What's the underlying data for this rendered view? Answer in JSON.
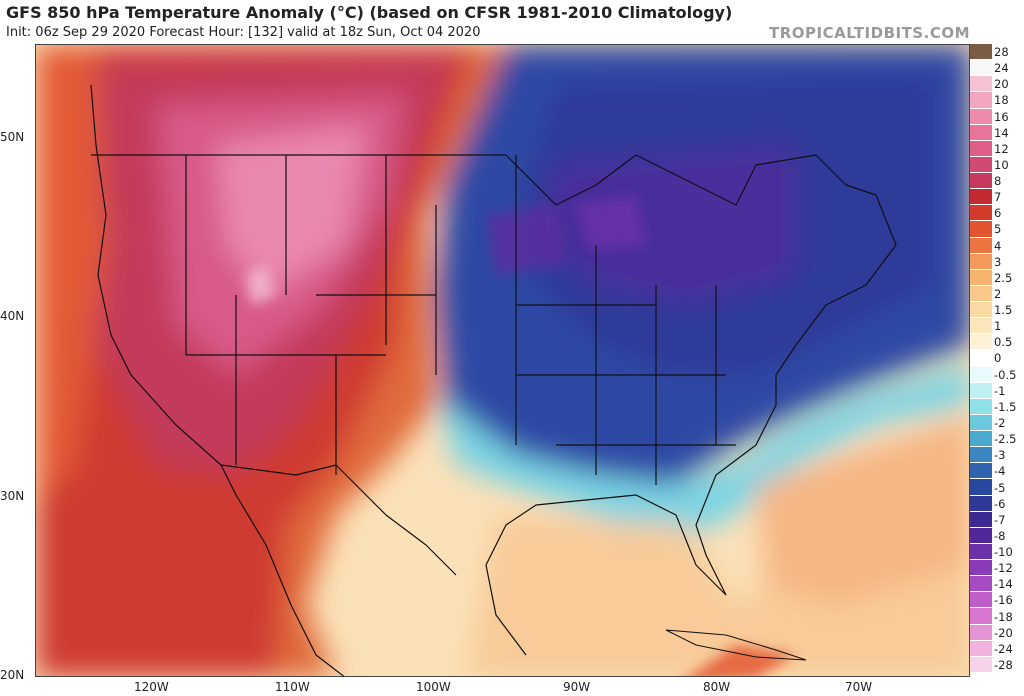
{
  "header": {
    "title": "GFS 850 hPa Temperature Anomaly (°C) (based on CFSR 1981-2010 Climatology)",
    "subtitle": "Init: 06z Sep 29 2020   Forecast Hour: [132]   valid at 18z Sun, Oct 04 2020",
    "brand": "TROPICALTIDBITS.COM"
  },
  "axes": {
    "lat_labels": [
      "50N",
      "40N",
      "30N",
      "20N"
    ],
    "lon_labels": [
      "120W",
      "110W",
      "100W",
      "90W",
      "80W",
      "70W"
    ]
  },
  "colorbar": {
    "levels": [
      "28",
      "24",
      "20",
      "18",
      "16",
      "14",
      "12",
      "10",
      "8",
      "7",
      "6",
      "5",
      "4",
      "3",
      "2.5",
      "2",
      "1.5",
      "1",
      "0.5",
      "0",
      "-0.5",
      "-1",
      "-1.5",
      "-2",
      "-2.5",
      "-3",
      "-4",
      "-5",
      "-6",
      "-7",
      "-8",
      "-10",
      "-12",
      "-14",
      "-16",
      "-18",
      "-20",
      "-24",
      "-28"
    ],
    "colors": [
      "#7a5c45",
      "#f7f7f7",
      "#f4c2d2",
      "#f2a6bf",
      "#ee8aab",
      "#e87498",
      "#df5e85",
      "#d04a74",
      "#c53a5e",
      "#c42a32",
      "#d43a2a",
      "#e25530",
      "#ec7440",
      "#f39a5a",
      "#f7b46e",
      "#f9c88a",
      "#fbd9a2",
      "#fce6bc",
      "#fdf1d6",
      "#ffffff",
      "#e8fbfb",
      "#bff0f1",
      "#8fe0e7",
      "#6cc8dc",
      "#4aa9cf",
      "#3b86c0",
      "#2f63ae",
      "#2848a0",
      "#2f3797",
      "#3c2a92",
      "#50289a",
      "#6a31a8",
      "#8a3cb6",
      "#a64bc1",
      "#c05ec9",
      "#d676cf",
      "#e494d5",
      "#efb3dd",
      "#f7d3e8"
    ]
  }
}
